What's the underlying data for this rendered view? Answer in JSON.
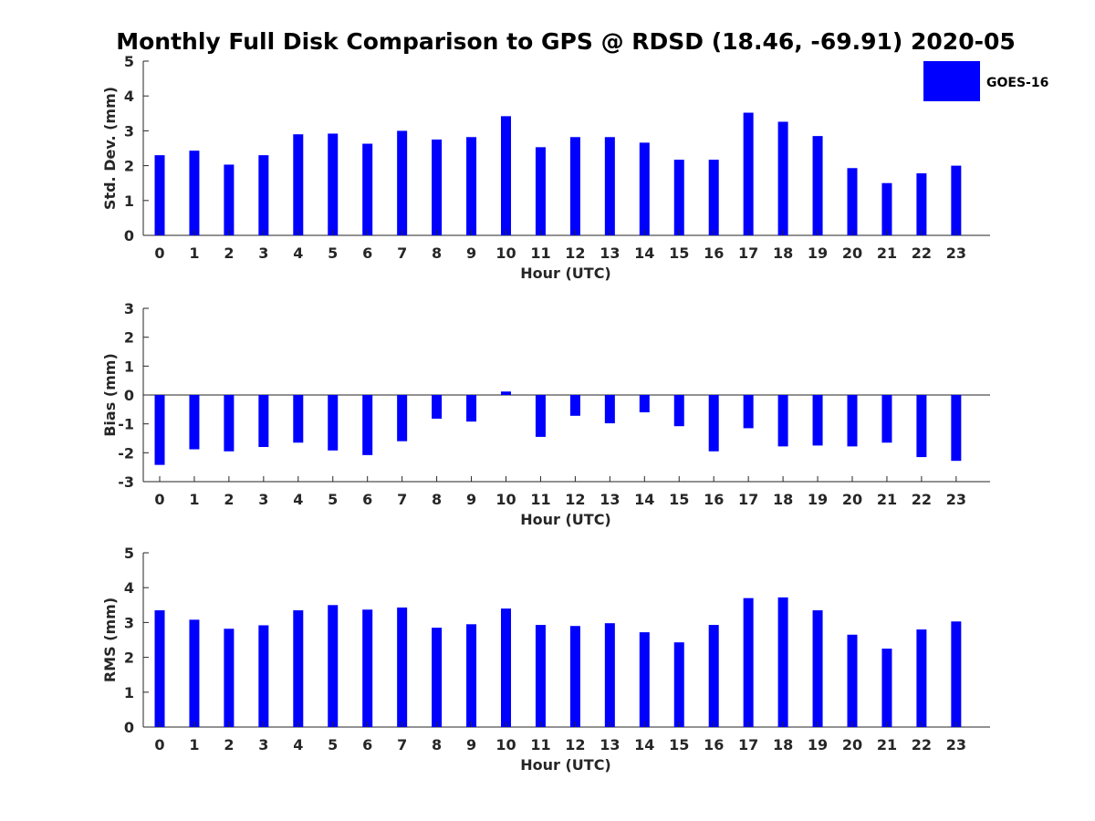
{
  "title": "Monthly Full Disk Comparison to GPS @ RDSD (18.46, -69.91) 2020-05",
  "legend": {
    "label": "GOES-16",
    "color": "#0000ff"
  },
  "bar_color": "#0000ff",
  "chart_data": [
    {
      "type": "bar",
      "xlabel": "Hour (UTC)",
      "ylabel": "Std. Dev. (mm)",
      "ylim": [
        0,
        5
      ],
      "yticks": [
        0,
        1,
        2,
        3,
        4,
        5
      ],
      "categories": [
        "0",
        "1",
        "2",
        "3",
        "4",
        "5",
        "6",
        "7",
        "8",
        "9",
        "10",
        "11",
        "12",
        "13",
        "14",
        "15",
        "16",
        "17",
        "18",
        "19",
        "20",
        "21",
        "22",
        "23"
      ],
      "series": [
        {
          "name": "GOES-16",
          "values": [
            2.3,
            2.43,
            2.03,
            2.3,
            2.9,
            2.92,
            2.63,
            3.0,
            2.75,
            2.82,
            3.42,
            2.53,
            2.82,
            2.82,
            2.66,
            2.17,
            2.17,
            3.52,
            3.26,
            2.85,
            1.93,
            1.5,
            1.78,
            2.0
          ]
        }
      ]
    },
    {
      "type": "bar",
      "xlabel": "Hour (UTC)",
      "ylabel": "Bias (mm)",
      "ylim": [
        -3,
        3
      ],
      "yticks": [
        -3,
        -2,
        -1,
        0,
        1,
        2,
        3
      ],
      "categories": [
        "0",
        "1",
        "2",
        "3",
        "4",
        "5",
        "6",
        "7",
        "8",
        "9",
        "10",
        "11",
        "12",
        "13",
        "14",
        "15",
        "16",
        "17",
        "18",
        "19",
        "20",
        "21",
        "22",
        "23"
      ],
      "series": [
        {
          "name": "GOES-16",
          "values": [
            -2.42,
            -1.88,
            -1.95,
            -1.8,
            -1.65,
            -1.92,
            -2.08,
            -1.6,
            -0.82,
            -0.92,
            0.12,
            -1.45,
            -0.72,
            -0.98,
            -0.6,
            -1.08,
            -1.95,
            -1.15,
            -1.78,
            -1.75,
            -1.78,
            -1.65,
            -2.15,
            -2.28
          ]
        }
      ]
    },
    {
      "type": "bar",
      "xlabel": "Hour (UTC)",
      "ylabel": "RMS (mm)",
      "ylim": [
        0,
        5
      ],
      "yticks": [
        0,
        1,
        2,
        3,
        4,
        5
      ],
      "categories": [
        "0",
        "1",
        "2",
        "3",
        "4",
        "5",
        "6",
        "7",
        "8",
        "9",
        "10",
        "11",
        "12",
        "13",
        "14",
        "15",
        "16",
        "17",
        "18",
        "19",
        "20",
        "21",
        "22",
        "23"
      ],
      "series": [
        {
          "name": "GOES-16",
          "values": [
            3.35,
            3.08,
            2.82,
            2.92,
            3.35,
            3.5,
            3.37,
            3.43,
            2.85,
            2.95,
            3.4,
            2.93,
            2.9,
            2.98,
            2.72,
            2.43,
            2.93,
            3.7,
            3.72,
            3.35,
            2.65,
            2.25,
            2.8,
            3.03
          ]
        }
      ]
    }
  ]
}
